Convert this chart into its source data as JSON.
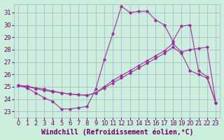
{
  "background_color": "#cceedd",
  "grid_color": "#aaaacc",
  "line_color": "#993399",
  "xlabel": "Windchill (Refroidissement éolien,°C)",
  "xlim": [
    -0.5,
    23.5
  ],
  "ylim": [
    22.5,
    31.7
  ],
  "xticks": [
    0,
    1,
    2,
    3,
    4,
    5,
    6,
    7,
    8,
    9,
    10,
    11,
    12,
    13,
    14,
    15,
    16,
    17,
    18,
    19,
    20,
    21,
    22,
    23
  ],
  "yticks": [
    23,
    24,
    25,
    26,
    27,
    28,
    29,
    30,
    31
  ],
  "line1_x": [
    0,
    1,
    2,
    3,
    4,
    5,
    6,
    7,
    8,
    9,
    10,
    11,
    12,
    13,
    14,
    15,
    16,
    17,
    18,
    19,
    20,
    21,
    22,
    23
  ],
  "line1_y": [
    25.1,
    24.9,
    24.5,
    24.1,
    23.8,
    23.2,
    23.2,
    23.3,
    23.4,
    24.8,
    27.2,
    29.3,
    31.5,
    31.0,
    31.1,
    31.1,
    30.4,
    30.0,
    28.7,
    29.9,
    30.0,
    26.3,
    25.8,
    23.7
  ],
  "line2_x": [
    0,
    1,
    2,
    3,
    4,
    5,
    6,
    7,
    8,
    9,
    10,
    11,
    12,
    13,
    14,
    15,
    16,
    17,
    18,
    19,
    20,
    21,
    22,
    23
  ],
  "line2_y": [
    25.1,
    25.0,
    24.85,
    24.7,
    24.6,
    24.5,
    24.4,
    24.35,
    24.3,
    24.5,
    24.9,
    25.3,
    25.7,
    26.1,
    26.5,
    26.9,
    27.3,
    27.7,
    28.2,
    27.7,
    26.3,
    26.0,
    25.7,
    23.7
  ],
  "line3_x": [
    0,
    1,
    2,
    3,
    4,
    5,
    6,
    7,
    8,
    9,
    10,
    11,
    12,
    13,
    14,
    15,
    16,
    17,
    18,
    19,
    20,
    21,
    22,
    23
  ],
  "line3_y": [
    25.1,
    25.05,
    24.9,
    24.8,
    24.65,
    24.5,
    24.4,
    24.35,
    24.3,
    24.5,
    25.0,
    25.5,
    25.9,
    26.3,
    26.7,
    27.1,
    27.5,
    27.9,
    28.5,
    27.8,
    28.0,
    28.1,
    28.2,
    23.7
  ],
  "xlabel_fontsize": 7,
  "tick_fontsize": 6,
  "marker": "D",
  "markersize": 1.8,
  "linewidth": 0.8
}
